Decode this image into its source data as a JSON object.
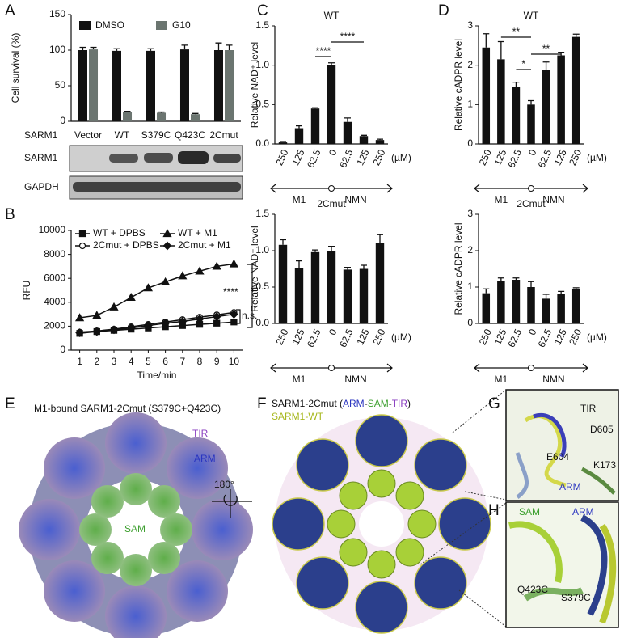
{
  "chart_data": [
    {
      "type": "bar",
      "ylabel": "Cell survival (%)",
      "categories": [
        "Vector",
        "WT",
        "S379C",
        "Q423C",
        "2Cmut"
      ],
      "series": [
        {
          "name": "DMSO",
          "color": "#111111",
          "values": [
            100,
            99,
            99,
            101,
            100
          ],
          "errors": [
            4,
            3,
            3,
            6,
            10
          ]
        },
        {
          "name": "G10",
          "color": "#6b7570",
          "values": [
            101,
            13,
            12,
            10,
            100
          ],
          "errors": [
            3,
            1,
            1,
            1,
            7
          ]
        }
      ],
      "ylim": [
        0,
        150
      ],
      "yticks": [
        0,
        50,
        100,
        150
      ],
      "legend": "top"
    },
    {
      "type": "line",
      "ylabel": "RFU",
      "xlabel": "Time/min",
      "x": [
        1,
        2,
        3,
        4,
        5,
        6,
        7,
        8,
        9,
        10
      ],
      "series": [
        {
          "name": "WT + DPBS",
          "marker": "square",
          "color": "#111111",
          "values": [
            1400,
            1550,
            1650,
            1750,
            1850,
            1950,
            2050,
            2150,
            2250,
            2350
          ]
        },
        {
          "name": "WT + M1",
          "marker": "triangle",
          "color": "#111111",
          "values": [
            2700,
            2900,
            3600,
            4400,
            5200,
            5700,
            6200,
            6600,
            7000,
            7200
          ]
        },
        {
          "name": "2Cmut + DPBS",
          "marker": "circle",
          "color": "#111111",
          "values": [
            1500,
            1600,
            1750,
            1950,
            2150,
            2350,
            2550,
            2750,
            2950,
            3150
          ]
        },
        {
          "name": "2Cmut + M1",
          "marker": "diamond",
          "color": "#111111",
          "values": [
            1450,
            1550,
            1700,
            1850,
            2050,
            2250,
            2400,
            2600,
            2800,
            3000
          ]
        }
      ],
      "xlim": [
        0.5,
        10.5
      ],
      "xticks": [
        1,
        2,
        3,
        4,
        5,
        6,
        7,
        8,
        9,
        10
      ],
      "ylim": [
        0,
        10000
      ],
      "yticks": [
        0,
        2000,
        4000,
        6000,
        8000,
        10000
      ],
      "annotations": [
        "****",
        "n.s."
      ]
    },
    {
      "type": "bar",
      "title": "WT",
      "ylabel": "Relative NAD⁺ level",
      "categories": [
        "250",
        "125",
        "62.5",
        "0",
        "62.5",
        "125",
        "250"
      ],
      "values": [
        0.02,
        0.2,
        0.45,
        1.0,
        0.28,
        0.1,
        0.05
      ],
      "errors": [
        0.01,
        0.03,
        0.01,
        0.03,
        0.05,
        0.01,
        0.01
      ],
      "color": "#111111",
      "ylim": [
        0,
        1.5
      ],
      "yticks": [
        {
          "value": 0,
          "label": "0.0"
        },
        {
          "value": 0.5,
          "label": "0.5"
        },
        {
          "value": 1,
          "label": "1.0"
        },
        {
          "value": 1.5,
          "label": "1.5"
        }
      ],
      "x_unit": "(µM)",
      "x_groups": [
        "M1",
        "NMN"
      ],
      "annotations": [
        "****",
        "****"
      ]
    },
    {
      "type": "bar",
      "title": "2Cmut",
      "ylabel": "Relative NAD⁺ level",
      "categories": [
        "250",
        "125",
        "62.5",
        "0",
        "62.5",
        "125",
        "250"
      ],
      "values": [
        1.08,
        0.76,
        0.98,
        1.0,
        0.74,
        0.75,
        1.1
      ],
      "errors": [
        0.07,
        0.1,
        0.03,
        0.06,
        0.03,
        0.05,
        0.12
      ],
      "color": "#111111",
      "ylim": [
        0,
        1.5
      ],
      "yticks": [
        {
          "value": 0,
          "label": "0.0"
        },
        {
          "value": 0.5,
          "label": "0.5"
        },
        {
          "value": 1,
          "label": "1.0"
        },
        {
          "value": 1.5,
          "label": "1.5"
        }
      ],
      "x_unit": "(µM)",
      "x_groups": [
        "M1",
        "NMN"
      ]
    },
    {
      "type": "bar",
      "title": "WT",
      "ylabel": "Relative cADPR level",
      "categories": [
        "250",
        "125",
        "62.5",
        "0",
        "62.5",
        "125",
        "250"
      ],
      "values": [
        2.45,
        2.15,
        1.45,
        1.0,
        1.88,
        2.25,
        2.72
      ],
      "errors": [
        0.35,
        0.45,
        0.12,
        0.1,
        0.2,
        0.08,
        0.07
      ],
      "color": "#111111",
      "ylim": [
        0,
        3
      ],
      "yticks": [
        0,
        1,
        2,
        3
      ],
      "x_unit": "(µM)",
      "x_groups": [
        "M1",
        "NMN"
      ],
      "annotations": [
        "**",
        "*",
        "**"
      ]
    },
    {
      "type": "bar",
      "title": "2Cmut",
      "ylabel": "Relative cADPR level",
      "categories": [
        "250",
        "125",
        "62.5",
        "0",
        "62.5",
        "125",
        "250"
      ],
      "values": [
        0.83,
        1.17,
        1.2,
        1.0,
        0.68,
        0.8,
        0.95
      ],
      "errors": [
        0.12,
        0.08,
        0.05,
        0.15,
        0.12,
        0.08,
        0.03
      ],
      "color": "#111111",
      "ylim": [
        0,
        3
      ],
      "yticks": [
        0,
        1,
        2,
        3
      ],
      "x_unit": "(µM)",
      "x_groups": [
        "M1",
        "NMN"
      ]
    }
  ],
  "panel_labels": [
    "A",
    "B",
    "C",
    "D",
    "E",
    "F",
    "G",
    "H"
  ],
  "blot": {
    "row_label": "SARM1",
    "bands": [
      "SARM1",
      "GAPDH"
    ]
  },
  "structure": {
    "e_title": "M1-bound SARM1-2Cmut (S379C+Q423C)",
    "e_labels": [
      "TIR",
      "ARM",
      "SAM"
    ],
    "rotation": "180°",
    "f_legend": [
      "SARM1-2Cmut (",
      "ARM",
      "-",
      "SAM",
      "-",
      "TIR",
      ")"
    ],
    "f_wt": "SARM1-WT",
    "g_labels": [
      "TIR",
      "D605",
      "E604",
      "K173",
      "ARM"
    ],
    "h_labels": [
      "SAM",
      "ARM",
      "Q423C",
      "S379C"
    ]
  }
}
